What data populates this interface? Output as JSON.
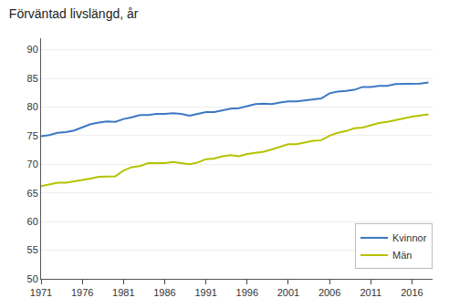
{
  "chart_data": {
    "type": "line",
    "title": "Förväntad livslängd, år",
    "x": [
      1971,
      1972,
      1973,
      1974,
      1975,
      1976,
      1977,
      1978,
      1979,
      1980,
      1981,
      1982,
      1983,
      1984,
      1985,
      1986,
      1987,
      1988,
      1989,
      1990,
      1991,
      1992,
      1993,
      1994,
      1995,
      1996,
      1997,
      1998,
      1999,
      2000,
      2001,
      2002,
      2003,
      2004,
      2005,
      2006,
      2007,
      2008,
      2009,
      2010,
      2011,
      2012,
      2013,
      2014,
      2015,
      2016,
      2017,
      2018
    ],
    "series": [
      {
        "name": "Kvinnor",
        "color": "#3b78c3",
        "values": [
          74.9,
          75.1,
          75.5,
          75.6,
          75.9,
          76.5,
          77.0,
          77.3,
          77.5,
          77.4,
          77.9,
          78.2,
          78.6,
          78.6,
          78.8,
          78.8,
          78.9,
          78.8,
          78.5,
          78.8,
          79.1,
          79.1,
          79.4,
          79.7,
          79.8,
          80.2,
          80.5,
          80.6,
          80.5,
          80.8,
          81.0,
          81.0,
          81.2,
          81.3,
          81.5,
          82.4,
          82.7,
          82.8,
          83.0,
          83.5,
          83.5,
          83.7,
          83.7,
          84.0,
          84.0,
          84.1,
          84.1,
          84.3
        ]
      },
      {
        "name": "Män",
        "color": "#b5c200",
        "values": [
          66.2,
          66.5,
          66.8,
          66.8,
          67.0,
          67.3,
          67.5,
          67.8,
          67.9,
          67.9,
          68.9,
          69.5,
          69.7,
          70.2,
          70.2,
          70.2,
          70.4,
          70.2,
          70.0,
          70.3,
          70.9,
          71.0,
          71.4,
          71.6,
          71.4,
          71.8,
          72.0,
          72.2,
          72.6,
          73.0,
          73.5,
          73.5,
          73.8,
          74.1,
          74.2,
          75.0,
          75.5,
          75.8,
          76.3,
          76.4,
          76.8,
          77.2,
          77.4,
          77.7,
          78.1,
          78.3,
          78.5,
          78.7
        ]
      }
    ],
    "xlim": [
      1971,
      2018.5
    ],
    "xticks": [
      1971,
      1976,
      1981,
      1986,
      1991,
      1996,
      2001,
      2006,
      2011,
      2016
    ],
    "ylim": [
      50,
      92
    ],
    "yticks": [
      50,
      55,
      60,
      65,
      70,
      75,
      80,
      85,
      90
    ],
    "grid": true,
    "legend": "lower right"
  }
}
